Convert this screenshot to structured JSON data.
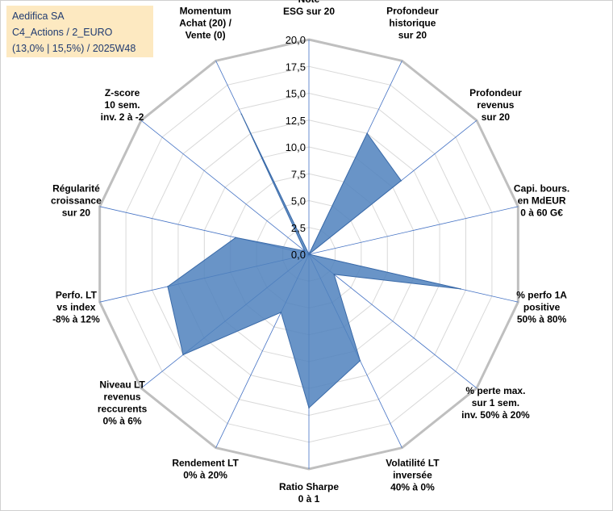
{
  "info_box": {
    "line1": "Aedifica SA",
    "line2": "C4_Actions / 2_EURO",
    "line3": "(13,0% | 15,5%) / 2025W48"
  },
  "chart_data": {
    "type": "radar",
    "title": "",
    "r_range": [
      0,
      20
    ],
    "r_ticks": [
      "0,0",
      "2,5",
      "5,0",
      "7,5",
      "10,0",
      "12,5",
      "15,0",
      "17,5",
      "20,0"
    ],
    "categories": [
      [
        "Note",
        "ESG sur 20"
      ],
      [
        "Profondeur",
        "historique",
        "sur 20"
      ],
      [
        "Profondeur",
        "revenus",
        "sur 20"
      ],
      [
        "Capi. bours.",
        "en MdEUR",
        "0 à 60 G€"
      ],
      [
        "% perfo 1A",
        "positive",
        "50% à 80%"
      ],
      [
        "% perte max.",
        "sur 1 sem.",
        "inv. 50% à 20%"
      ],
      [
        "Volatilité LT",
        "inversée",
        "40% à 0%"
      ],
      [
        "Ratio Sharpe",
        "0 à 1"
      ],
      [
        "Rendement LT",
        "0% à 20%"
      ],
      [
        "Niveau LT",
        "revenus",
        "reccurents",
        "0% à 6%"
      ],
      [
        "Perfo. LT",
        "vs index",
        "-8% à 12%"
      ],
      [
        "Régularité",
        "croissance",
        "sur 20"
      ],
      [
        "Z-score",
        "10 sem.",
        "inv. 2 à -2"
      ],
      [
        "Momentum",
        "Achat (20) /",
        "Vente (0)"
      ]
    ],
    "series": [
      {
        "values": [
          0,
          12.5,
          11.0,
          0,
          14.5,
          3.0,
          11.0,
          14.3,
          6.0,
          15.0,
          13.5,
          7.0,
          0.5,
          14.5
        ]
      }
    ],
    "colors": {
      "fill": "#4f81bd",
      "grid": "#d9d9d9",
      "outer": "#bfbfbf",
      "spoke": "#4472c4"
    },
    "grid": true
  }
}
